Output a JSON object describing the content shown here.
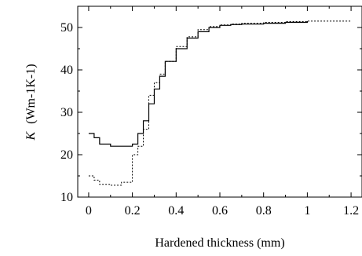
{
  "chart_data": {
    "type": "line",
    "line_shape": "step",
    "xlabel": "Hardened thickness (mm)",
    "ylabel_symbol": "K",
    "ylabel_units": "(Wm-1K-1)",
    "xlim": [
      -0.05,
      1.25
    ],
    "ylim": [
      10,
      55
    ],
    "x_ticks": [
      "0",
      "0.2",
      "0.4",
      "0.6",
      "0.8",
      "1",
      "1.2"
    ],
    "y_ticks": [
      "10",
      "20",
      "30",
      "40",
      "50"
    ],
    "series": [
      {
        "style": "solid",
        "x": [
          0,
          0.025,
          0.05,
          0.1,
          0.15,
          0.2,
          0.225,
          0.25,
          0.275,
          0.3,
          0.325,
          0.35,
          0.4,
          0.45,
          0.5,
          0.55,
          0.6,
          0.65,
          0.7,
          0.8,
          0.9,
          1.0
        ],
        "values": [
          25,
          24,
          22.5,
          22,
          22,
          22.5,
          25,
          28,
          32,
          35.5,
          38.5,
          42,
          45,
          47.5,
          49,
          50,
          50.5,
          50.7,
          50.8,
          51,
          51.2,
          51.5
        ]
      },
      {
        "style": "dotted",
        "x": [
          0,
          0.025,
          0.05,
          0.1,
          0.15,
          0.2,
          0.225,
          0.25,
          0.275,
          0.3,
          0.325,
          0.35,
          0.4,
          0.45,
          0.5,
          0.55,
          0.6,
          0.65,
          0.7,
          0.8,
          0.9,
          1.0,
          1.2
        ],
        "values": [
          15,
          14,
          13,
          12.8,
          13.5,
          20,
          22,
          26,
          34,
          37,
          39,
          42,
          45.5,
          47.8,
          49.5,
          50.2,
          50.6,
          50.8,
          51,
          51.2,
          51.4,
          51.5,
          51.5
        ]
      }
    ]
  }
}
